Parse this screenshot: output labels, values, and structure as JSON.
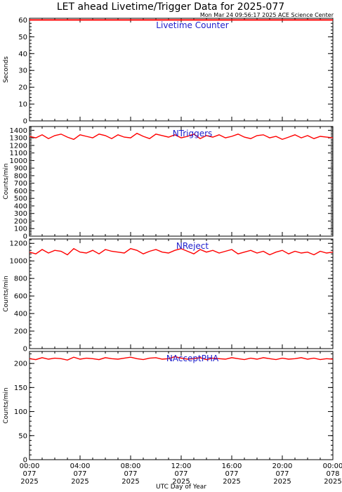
{
  "title": "LET ahead Livetime/Trigger Data for 2025-077",
  "timestamp": "Mon Mar 24 09:56:17 2025 ACE Science Center",
  "xlabel": "UTC Day of Year",
  "colors": {
    "series": "#ff0000",
    "panel_label": "#2020cc",
    "axis": "#000000"
  },
  "x_ticks": [
    {
      "hour": 0,
      "time": "00:00",
      "doy": "077",
      "year": "2025"
    },
    {
      "hour": 4,
      "time": "04:00",
      "doy": "077",
      "year": "2025"
    },
    {
      "hour": 8,
      "time": "08:00",
      "doy": "077",
      "year": "2025"
    },
    {
      "hour": 12,
      "time": "12:00",
      "doy": "077",
      "year": "2025"
    },
    {
      "hour": 16,
      "time": "16:00",
      "doy": "077",
      "year": "2025"
    },
    {
      "hour": 20,
      "time": "20:00",
      "doy": "077",
      "year": "2025"
    },
    {
      "hour": 24,
      "time": "00:00",
      "doy": "078",
      "year": "2025"
    }
  ],
  "chart_data": [
    {
      "type": "line",
      "label": "Livetime Counter",
      "ylabel": "Seconds",
      "xlim": [
        0,
        24
      ],
      "ylim": [
        0,
        61
      ],
      "y_ticks": [
        0,
        10,
        20,
        30,
        40,
        50,
        60
      ],
      "series": [
        {
          "x": [
            0,
            24
          ],
          "y": [
            60,
            60
          ]
        }
      ]
    },
    {
      "type": "line",
      "label": "NTriggers",
      "ylabel": "Counts/min",
      "xlim": [
        0,
        24
      ],
      "ylim": [
        0,
        1450
      ],
      "y_ticks": [
        0,
        100,
        200,
        300,
        400,
        500,
        600,
        700,
        800,
        900,
        1000,
        1100,
        1200,
        1300,
        1400
      ],
      "series": [
        {
          "x": [
            0,
            0.5,
            1,
            1.5,
            2,
            2.5,
            3,
            3.5,
            4,
            4.5,
            5,
            5.5,
            6,
            6.5,
            7,
            7.5,
            8,
            8.5,
            9,
            9.5,
            10,
            10.5,
            11,
            11.5,
            12,
            12.5,
            13,
            13.5,
            14,
            14.5,
            15,
            15.5,
            16,
            16.5,
            17,
            17.5,
            18,
            18.5,
            19,
            19.5,
            20,
            20.5,
            21,
            21.5,
            22,
            22.5,
            23,
            23.5,
            24
          ],
          "y": [
            1320,
            1300,
            1340,
            1290,
            1330,
            1350,
            1310,
            1280,
            1340,
            1320,
            1300,
            1350,
            1330,
            1290,
            1340,
            1310,
            1300,
            1360,
            1320,
            1290,
            1350,
            1330,
            1310,
            1340,
            1300,
            1320,
            1350,
            1290,
            1330,
            1310,
            1340,
            1300,
            1320,
            1350,
            1310,
            1290,
            1330,
            1340,
            1300,
            1320,
            1280,
            1310,
            1340,
            1300,
            1330,
            1290,
            1320,
            1310,
            1300
          ]
        }
      ]
    },
    {
      "type": "line",
      "label": "NReject",
      "ylabel": "Counts/min",
      "xlim": [
        0,
        24
      ],
      "ylim": [
        0,
        1250
      ],
      "y_ticks": [
        0,
        200,
        400,
        600,
        800,
        1000,
        1200
      ],
      "series": [
        {
          "x": [
            0,
            0.5,
            1,
            1.5,
            2,
            2.5,
            3,
            3.5,
            4,
            4.5,
            5,
            5.5,
            6,
            6.5,
            7,
            7.5,
            8,
            8.5,
            9,
            9.5,
            10,
            10.5,
            11,
            11.5,
            12,
            12.5,
            13,
            13.5,
            14,
            14.5,
            15,
            15.5,
            16,
            16.5,
            17,
            17.5,
            18,
            18.5,
            19,
            19.5,
            20,
            20.5,
            21,
            21.5,
            22,
            22.5,
            23,
            23.5,
            24
          ],
          "y": [
            1100,
            1080,
            1130,
            1090,
            1120,
            1110,
            1070,
            1140,
            1100,
            1090,
            1120,
            1080,
            1130,
            1110,
            1100,
            1090,
            1140,
            1120,
            1080,
            1110,
            1130,
            1100,
            1090,
            1120,
            1140,
            1110,
            1080,
            1130,
            1100,
            1120,
            1090,
            1110,
            1130,
            1080,
            1100,
            1120,
            1090,
            1110,
            1070,
            1100,
            1120,
            1080,
            1110,
            1090,
            1100,
            1070,
            1110,
            1090,
            1100
          ]
        }
      ]
    },
    {
      "type": "line",
      "label": "NAcceptPHA",
      "ylabel": "Counts/min",
      "xlim": [
        0,
        24
      ],
      "ylim": [
        0,
        225
      ],
      "y_ticks": [
        0,
        50,
        100,
        150,
        200
      ],
      "series": [
        {
          "x": [
            0,
            0.5,
            1,
            1.5,
            2,
            2.5,
            3,
            3.5,
            4,
            4.5,
            5,
            5.5,
            6,
            6.5,
            7,
            7.5,
            8,
            8.5,
            9,
            9.5,
            10,
            10.5,
            11,
            11.5,
            12,
            12.5,
            13,
            13.5,
            14,
            14.5,
            15,
            15.5,
            16,
            16.5,
            17,
            17.5,
            18,
            18.5,
            19,
            19.5,
            20,
            20.5,
            21,
            21.5,
            22,
            22.5,
            23,
            23.5,
            24
          ],
          "y": [
            210,
            208,
            212,
            209,
            211,
            210,
            207,
            213,
            209,
            211,
            210,
            208,
            212,
            210,
            209,
            211,
            213,
            210,
            208,
            211,
            212,
            209,
            210,
            214,
            211,
            209,
            210,
            212,
            208,
            211,
            210,
            209,
            212,
            210,
            208,
            211,
            209,
            212,
            210,
            208,
            211,
            209,
            210,
            212,
            209,
            211,
            208,
            210,
            209
          ]
        }
      ]
    }
  ]
}
